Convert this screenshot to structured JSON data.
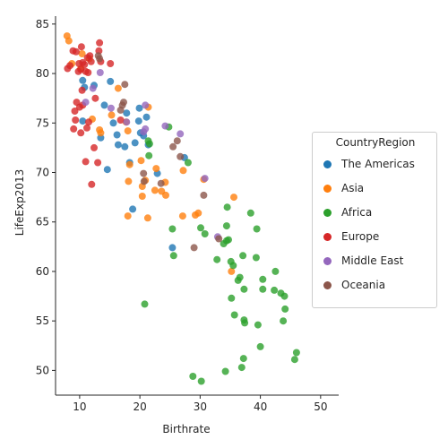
{
  "chart_data": {
    "type": "scatter",
    "title": "",
    "xlabel": "Birthrate",
    "ylabel": "LifeExp2013",
    "xlim": [
      6,
      53
    ],
    "ylim": [
      47.5,
      85.8
    ],
    "xticks": [
      10,
      20,
      30,
      40,
      50
    ],
    "yticks": [
      50,
      55,
      60,
      65,
      70,
      75,
      80,
      85
    ],
    "grid": false,
    "legend": {
      "title": "CountryRegion",
      "placement": "right"
    },
    "series": [
      {
        "name": "The Americas",
        "color": "#1f77b4",
        "points": [
          [
            10.5,
            79.3
          ],
          [
            10.8,
            78.6
          ],
          [
            12.4,
            78.8
          ],
          [
            10.5,
            75.2
          ],
          [
            14.1,
            76.8
          ],
          [
            15.1,
            79.2
          ],
          [
            13.5,
            73.5
          ],
          [
            14.6,
            70.3
          ],
          [
            15.6,
            75.0
          ],
          [
            16.2,
            73.8
          ],
          [
            16.4,
            72.8
          ],
          [
            17.5,
            72.6
          ],
          [
            17.8,
            76.0
          ],
          [
            18.3,
            71.0
          ],
          [
            19.2,
            73.0
          ],
          [
            19.8,
            75.2
          ],
          [
            19.9,
            76.5
          ],
          [
            20.1,
            74.0
          ],
          [
            20.6,
            73.7
          ],
          [
            21.1,
            75.6
          ],
          [
            21.4,
            72.8
          ],
          [
            18.8,
            66.3
          ],
          [
            22.9,
            69.9
          ],
          [
            27.4,
            71.5
          ],
          [
            25.4,
            62.4
          ]
        ]
      },
      {
        "name": "Asia",
        "color": "#ff7f0e",
        "points": [
          [
            7.9,
            83.8
          ],
          [
            8.2,
            83.3
          ],
          [
            8.7,
            81.0
          ],
          [
            10.2,
            80.5
          ],
          [
            10.4,
            82.0
          ],
          [
            11.6,
            81.5
          ],
          [
            12.1,
            75.4
          ],
          [
            13.3,
            74.3
          ],
          [
            13.5,
            74.0
          ],
          [
            15.3,
            75.8
          ],
          [
            16.4,
            78.5
          ],
          [
            17.7,
            75.1
          ],
          [
            18.0,
            74.2
          ],
          [
            18.1,
            69.1
          ],
          [
            18.3,
            70.8
          ],
          [
            18.0,
            65.6
          ],
          [
            20.2,
            71.2
          ],
          [
            20.4,
            68.6
          ],
          [
            20.4,
            67.6
          ],
          [
            20.9,
            69.2
          ],
          [
            21.3,
            65.4
          ],
          [
            21.4,
            76.6
          ],
          [
            22.5,
            68.2
          ],
          [
            22.7,
            70.4
          ],
          [
            23.6,
            68.1
          ],
          [
            24.2,
            69.0
          ],
          [
            24.3,
            67.7
          ],
          [
            27.1,
            65.6
          ],
          [
            27.2,
            70.2
          ],
          [
            29.2,
            65.7
          ],
          [
            29.7,
            65.9
          ],
          [
            30.6,
            69.3
          ],
          [
            35.6,
            67.5
          ],
          [
            35.2,
            60.0
          ]
        ]
      },
      {
        "name": "Africa",
        "color": "#2ca02c",
        "points": [
          [
            20.8,
            56.7
          ],
          [
            21.4,
            73.2
          ],
          [
            21.5,
            71.7
          ],
          [
            21.6,
            72.9
          ],
          [
            24.8,
            74.6
          ],
          [
            25.4,
            64.3
          ],
          [
            25.6,
            61.6
          ],
          [
            28.0,
            71.0
          ],
          [
            28.8,
            49.4
          ],
          [
            30.1,
            64.4
          ],
          [
            30.2,
            48.9
          ],
          [
            30.8,
            63.8
          ],
          [
            32.8,
            61.2
          ],
          [
            33.9,
            62.8
          ],
          [
            34.4,
            63.1
          ],
          [
            34.4,
            64.6
          ],
          [
            34.5,
            66.5
          ],
          [
            34.7,
            63.2
          ],
          [
            35.1,
            61.0
          ],
          [
            35.2,
            57.3
          ],
          [
            35.5,
            60.6
          ],
          [
            35.7,
            55.6
          ],
          [
            36.3,
            59.1
          ],
          [
            36.6,
            59.4
          ],
          [
            36.9,
            50.3
          ],
          [
            37.1,
            61.6
          ],
          [
            37.2,
            51.2
          ],
          [
            37.3,
            55.1
          ],
          [
            37.3,
            58.2
          ],
          [
            37.4,
            54.8
          ],
          [
            34.2,
            49.9
          ],
          [
            38.4,
            65.9
          ],
          [
            39.3,
            61.4
          ],
          [
            39.4,
            64.3
          ],
          [
            39.6,
            54.6
          ],
          [
            40.0,
            52.4
          ],
          [
            40.4,
            59.2
          ],
          [
            40.4,
            58.2
          ],
          [
            42.3,
            58.1
          ],
          [
            42.5,
            60.0
          ],
          [
            43.4,
            57.8
          ],
          [
            43.8,
            55.0
          ],
          [
            44.0,
            57.5
          ],
          [
            44.1,
            56.2
          ],
          [
            45.7,
            51.1
          ],
          [
            46.0,
            51.8
          ]
        ]
      },
      {
        "name": "Europe",
        "color": "#d62728",
        "points": [
          [
            8.0,
            80.5
          ],
          [
            8.4,
            80.8
          ],
          [
            8.9,
            82.3
          ],
          [
            9.0,
            74.4
          ],
          [
            9.2,
            76.2
          ],
          [
            9.3,
            75.3
          ],
          [
            9.4,
            82.2
          ],
          [
            9.5,
            77.1
          ],
          [
            9.8,
            80.2
          ],
          [
            9.9,
            81.0
          ],
          [
            10.0,
            76.6
          ],
          [
            10.2,
            74.0
          ],
          [
            10.2,
            80.4
          ],
          [
            10.3,
            82.7
          ],
          [
            10.4,
            78.3
          ],
          [
            10.5,
            81.1
          ],
          [
            10.5,
            76.8
          ],
          [
            10.8,
            80.9
          ],
          [
            11.0,
            71.1
          ],
          [
            11.0,
            80.2
          ],
          [
            11.2,
            74.5
          ],
          [
            11.3,
            81.6
          ],
          [
            11.4,
            80.1
          ],
          [
            11.5,
            75.1
          ],
          [
            11.7,
            81.8
          ],
          [
            11.9,
            81.2
          ],
          [
            12.0,
            68.8
          ],
          [
            12.4,
            72.5
          ],
          [
            12.6,
            77.5
          ],
          [
            13.0,
            71.0
          ],
          [
            13.2,
            82.3
          ],
          [
            13.3,
            83.1
          ],
          [
            13.5,
            81.2
          ],
          [
            15.1,
            81.0
          ],
          [
            16.8,
            75.3
          ]
        ]
      },
      {
        "name": "Middle East",
        "color": "#9467bd",
        "points": [
          [
            11.0,
            77.1
          ],
          [
            12.2,
            78.5
          ],
          [
            13.4,
            80.1
          ],
          [
            15.2,
            76.5
          ],
          [
            17.8,
            75.1
          ],
          [
            20.6,
            74.1
          ],
          [
            20.9,
            74.4
          ],
          [
            20.9,
            76.8
          ],
          [
            24.2,
            74.7
          ],
          [
            26.7,
            73.9
          ],
          [
            30.8,
            69.4
          ],
          [
            32.9,
            63.5
          ]
        ]
      },
      {
        "name": "Oceania",
        "color": "#8c564b",
        "points": [
          [
            13.1,
            81.8
          ],
          [
            13.3,
            81.5
          ],
          [
            16.8,
            76.3
          ],
          [
            17.1,
            76.8
          ],
          [
            17.3,
            77.1
          ],
          [
            17.5,
            78.9
          ],
          [
            20.6,
            69.9
          ],
          [
            20.7,
            69.1
          ],
          [
            23.5,
            68.9
          ],
          [
            25.5,
            72.6
          ],
          [
            26.2,
            73.2
          ],
          [
            26.7,
            71.6
          ],
          [
            29.0,
            62.4
          ],
          [
            30.6,
            67.7
          ],
          [
            33.1,
            63.3
          ]
        ]
      }
    ]
  }
}
